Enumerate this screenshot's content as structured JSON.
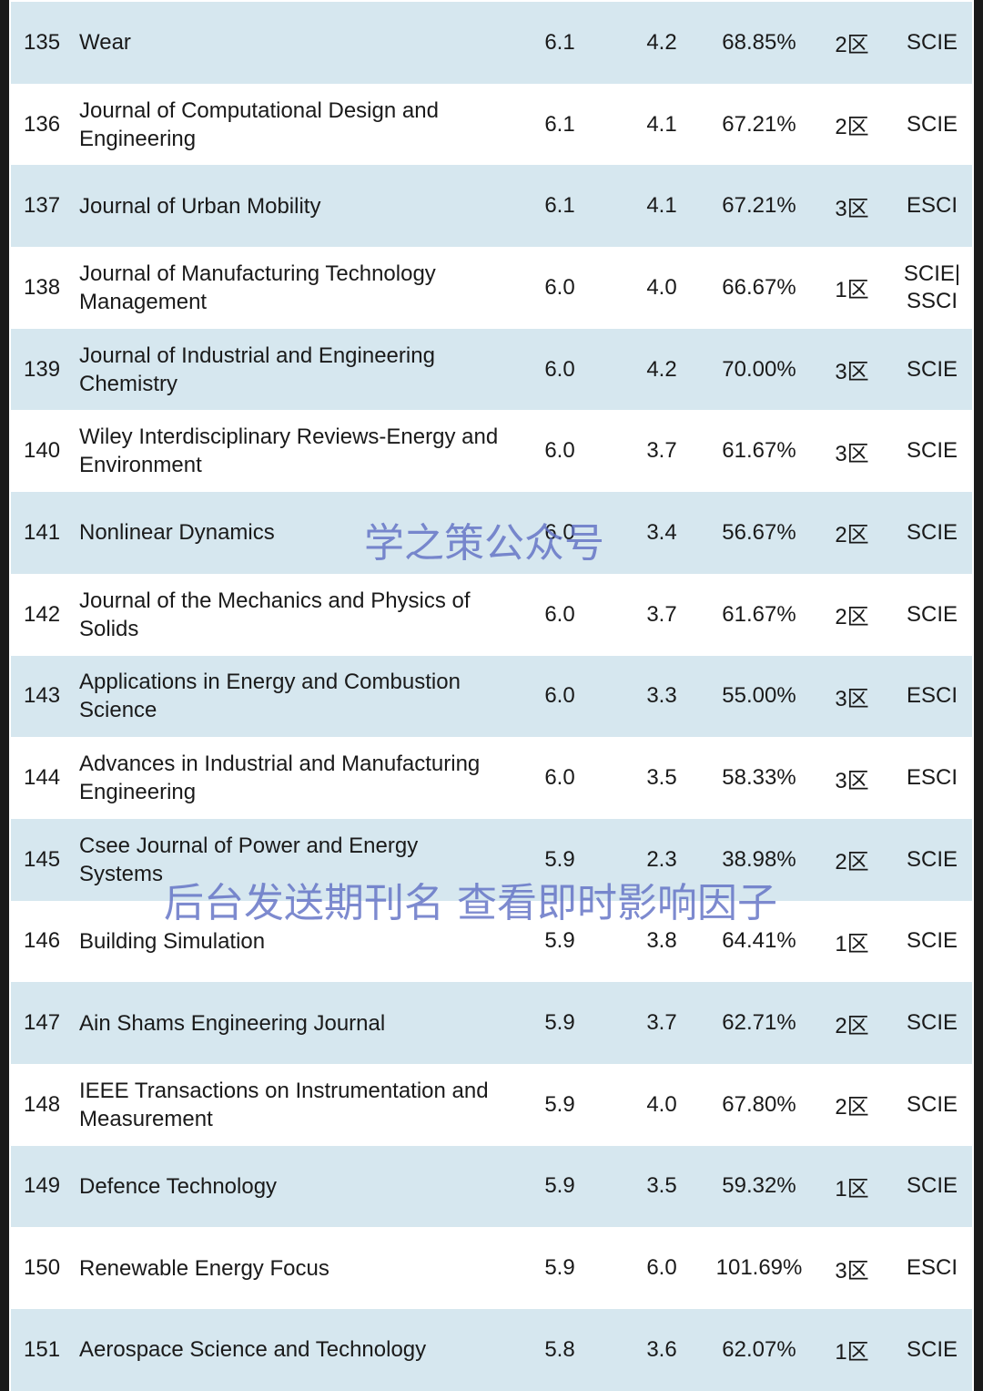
{
  "rows": [
    {
      "rank": "135",
      "name": "Wear",
      "if": "6.1",
      "cs": "4.2",
      "pct": "68.85%",
      "zone": "2区",
      "index": "SCIE"
    },
    {
      "rank": "136",
      "name": "Journal of Computational Design and Engineering",
      "if": "6.1",
      "cs": "4.1",
      "pct": "67.21%",
      "zone": "2区",
      "index": "SCIE"
    },
    {
      "rank": "137",
      "name": "Journal of Urban Mobility",
      "if": "6.1",
      "cs": "4.1",
      "pct": "67.21%",
      "zone": "3区",
      "index": "ESCI"
    },
    {
      "rank": "138",
      "name": "Journal of Manufacturing Technology Management",
      "if": "6.0",
      "cs": "4.0",
      "pct": "66.67%",
      "zone": "1区",
      "index": "SCIE| SSCI"
    },
    {
      "rank": "139",
      "name": "Journal of Industrial and Engineering Chemistry",
      "if": "6.0",
      "cs": "4.2",
      "pct": "70.00%",
      "zone": "3区",
      "index": "SCIE"
    },
    {
      "rank": "140",
      "name": "Wiley Interdisciplinary Reviews-Energy and Environment",
      "if": "6.0",
      "cs": "3.7",
      "pct": "61.67%",
      "zone": "3区",
      "index": "SCIE"
    },
    {
      "rank": "141",
      "name": "Nonlinear Dynamics",
      "if": "6.0",
      "cs": "3.4",
      "pct": "56.67%",
      "zone": "2区",
      "index": "SCIE"
    },
    {
      "rank": "142",
      "name": "Journal of the Mechanics and Physics of Solids",
      "if": "6.0",
      "cs": "3.7",
      "pct": "61.67%",
      "zone": "2区",
      "index": "SCIE"
    },
    {
      "rank": "143",
      "name": "Applications in Energy and Combustion Science",
      "if": "6.0",
      "cs": "3.3",
      "pct": "55.00%",
      "zone": "3区",
      "index": "ESCI"
    },
    {
      "rank": "144",
      "name": "Advances in Industrial and Manufacturing Engineering",
      "if": "6.0",
      "cs": "3.5",
      "pct": "58.33%",
      "zone": "3区",
      "index": "ESCI"
    },
    {
      "rank": "145",
      "name": "Csee Journal of Power and Energy Systems",
      "if": "5.9",
      "cs": "2.3",
      "pct": "38.98%",
      "zone": "2区",
      "index": "SCIE"
    },
    {
      "rank": "146",
      "name": "Building Simulation",
      "if": "5.9",
      "cs": "3.8",
      "pct": "64.41%",
      "zone": "1区",
      "index": "SCIE"
    },
    {
      "rank": "147",
      "name": "Ain Shams Engineering Journal",
      "if": "5.9",
      "cs": "3.7",
      "pct": "62.71%",
      "zone": "2区",
      "index": "SCIE"
    },
    {
      "rank": "148",
      "name": "IEEE Transactions on Instrumentation and Measurement",
      "if": "5.9",
      "cs": "4.0",
      "pct": "67.80%",
      "zone": "2区",
      "index": "SCIE"
    },
    {
      "rank": "149",
      "name": "Defence Technology",
      "if": "5.9",
      "cs": "3.5",
      "pct": "59.32%",
      "zone": "1区",
      "index": "SCIE"
    },
    {
      "rank": "150",
      "name": "Renewable Energy Focus",
      "if": "5.9",
      "cs": "6.0",
      "pct": "101.69%",
      "zone": "3区",
      "index": "ESCI"
    },
    {
      "rank": "151",
      "name": "Aerospace Science and Technology",
      "if": "5.8",
      "cs": "3.6",
      "pct": "62.07%",
      "zone": "1区",
      "index": "SCIE"
    }
  ],
  "watermarks": {
    "top": "学之策公众号",
    "bottom": "后台发送期刊名 查看即时影响因子"
  },
  "colors": {
    "row_shade": "#d6e7ef",
    "row_plain": "#ffffff",
    "watermark": "#6070c4"
  }
}
